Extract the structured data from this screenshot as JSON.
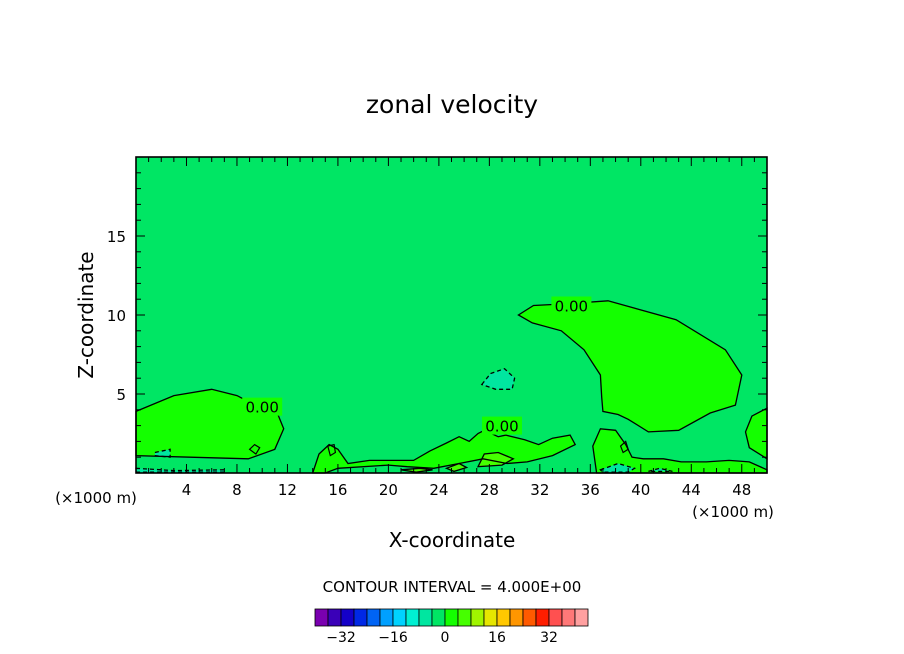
{
  "chart_data": {
    "type": "contour",
    "title": "zonal velocity",
    "xlabel": "X-coordinate",
    "ylabel": "Z-coordinate",
    "x_unit_left": "(×1000 m)",
    "x_unit_right": "(×1000 m)",
    "xlim": [
      0,
      50
    ],
    "ylim": [
      0,
      20
    ],
    "xticks": [
      4,
      8,
      12,
      16,
      20,
      24,
      28,
      32,
      36,
      40,
      44,
      48
    ],
    "yticks": [
      5,
      10,
      15
    ],
    "contour_interval_text": "CONTOUR INTERVAL = 4.000E+00",
    "contour_labels": [
      {
        "text": "0.00",
        "x": 10,
        "z": 4.2
      },
      {
        "text": "0.00",
        "x": 29,
        "z": 3.0
      },
      {
        "text": "0.00",
        "x": 34.5,
        "z": 10.6
      }
    ],
    "regions": [
      {
        "name": "upper-right-positive",
        "level": 4,
        "polygon": [
          [
            30.3,
            10.0
          ],
          [
            31.5,
            10.6
          ],
          [
            34,
            10.7
          ],
          [
            37.4,
            10.9
          ],
          [
            42.8,
            9.7
          ],
          [
            46.7,
            7.8
          ],
          [
            48.0,
            6.2
          ],
          [
            47.5,
            4.3
          ],
          [
            45.5,
            3.8
          ],
          [
            43.0,
            2.7
          ],
          [
            40.6,
            2.6
          ],
          [
            39.0,
            3.4
          ],
          [
            38.2,
            3.7
          ],
          [
            37.0,
            3.9
          ],
          [
            36.9,
            4.8
          ],
          [
            36.8,
            6.2
          ],
          [
            35.5,
            7.8
          ],
          [
            33.7,
            9.0
          ],
          [
            31.4,
            9.5
          ]
        ]
      },
      {
        "name": "left-positive",
        "level": 4,
        "polygon": [
          [
            0,
            3.9
          ],
          [
            3.0,
            4.9
          ],
          [
            6.0,
            5.3
          ],
          [
            8.0,
            4.9
          ],
          [
            9.2,
            4.4
          ],
          [
            11.2,
            3.8
          ],
          [
            11.7,
            2.8
          ],
          [
            11.0,
            1.5
          ],
          [
            8.9,
            0.9
          ],
          [
            4.3,
            1.0
          ],
          [
            0,
            1.1
          ]
        ]
      },
      {
        "name": "left-cyan-pocket",
        "level": -4,
        "polygon": [
          [
            1.5,
            1.3
          ],
          [
            2.7,
            1.5
          ],
          [
            2.7,
            1.0
          ],
          [
            1.5,
            1.1
          ]
        ]
      },
      {
        "name": "lower-middle-positive",
        "level": 4,
        "polygon": [
          [
            14.0,
            0
          ],
          [
            14.5,
            1.2
          ],
          [
            15.3,
            1.8
          ],
          [
            16.0,
            1.5
          ],
          [
            16.8,
            0.6
          ],
          [
            18.5,
            0.8
          ],
          [
            22.0,
            0.8
          ],
          [
            23.3,
            1.4
          ],
          [
            24.6,
            1.9
          ],
          [
            25.6,
            2.3
          ],
          [
            26.4,
            2.0
          ],
          [
            27.1,
            2.5
          ],
          [
            27.6,
            2.7
          ],
          [
            28.7,
            2.3
          ],
          [
            29.3,
            2.4
          ],
          [
            30.8,
            2.1
          ],
          [
            31.9,
            1.8
          ],
          [
            33.0,
            2.2
          ],
          [
            34.4,
            2.4
          ],
          [
            34.8,
            1.8
          ],
          [
            33.0,
            1.1
          ],
          [
            31.0,
            0.7
          ],
          [
            29.4,
            0.6
          ],
          [
            27.5,
            0.9
          ],
          [
            25.6,
            0.6
          ],
          [
            23.6,
            0.3
          ],
          [
            21.5,
            0.4
          ],
          [
            20.0,
            0.5
          ],
          [
            16.0,
            0.3
          ],
          [
            15.0,
            0
          ]
        ]
      },
      {
        "name": "lower-right-positive",
        "level": 4,
        "polygon": [
          [
            36.5,
            0
          ],
          [
            36.2,
            1.7
          ],
          [
            36.8,
            2.8
          ],
          [
            38.0,
            2.7
          ],
          [
            38.8,
            1.8
          ],
          [
            39.3,
            1.0
          ],
          [
            40.2,
            0.9
          ],
          [
            41.8,
            0.9
          ],
          [
            43.2,
            0.7
          ],
          [
            45.2,
            0.7
          ],
          [
            47.0,
            0.8
          ],
          [
            48.6,
            0.7
          ],
          [
            50,
            0.2
          ],
          [
            50,
            0
          ]
        ]
      },
      {
        "name": "right-edge-positive",
        "level": 4,
        "polygon": [
          [
            50,
            4.1
          ],
          [
            48.8,
            3.6
          ],
          [
            48.3,
            2.6
          ],
          [
            48.6,
            1.6
          ],
          [
            50,
            0.9
          ]
        ]
      },
      {
        "name": "mid-cyan-blob",
        "level": -4,
        "polygon": [
          [
            27.4,
            5.6
          ],
          [
            28.1,
            6.3
          ],
          [
            29.2,
            6.6
          ],
          [
            30.0,
            6.0
          ],
          [
            29.8,
            5.3
          ],
          [
            28.5,
            5.3
          ]
        ]
      },
      {
        "name": "bottom-cyan-streak-left",
        "level": -4,
        "polygon": [
          [
            0,
            0.3
          ],
          [
            3.0,
            0.15
          ],
          [
            7.0,
            0.2
          ],
          [
            7.0,
            0.05
          ],
          [
            0,
            0.05
          ]
        ]
      },
      {
        "name": "bottom-cyan-streak-right",
        "level": -4,
        "polygon": [
          [
            36.8,
            0.2
          ],
          [
            38.2,
            0.6
          ],
          [
            39.5,
            0.3
          ],
          [
            39.0,
            0.05
          ],
          [
            37.0,
            0.05
          ]
        ]
      },
      {
        "name": "bottom-cyan-streak-far",
        "level": -4,
        "polygon": [
          [
            40.6,
            0.1
          ],
          [
            41.5,
            0.3
          ],
          [
            42.5,
            0.1
          ]
        ]
      },
      {
        "name": "bottom-light-green-1",
        "level": 8,
        "polygon": [
          [
            27.1,
            0.4
          ],
          [
            27.6,
            1.2
          ],
          [
            28.7,
            1.3
          ],
          [
            29.9,
            0.9
          ],
          [
            29.0,
            0.5
          ]
        ]
      },
      {
        "name": "bottom-light-green-2",
        "level": 8,
        "polygon": [
          [
            21.0,
            0.2
          ],
          [
            22.5,
            0.3
          ],
          [
            23.5,
            0.2
          ],
          [
            22.2,
            0.05
          ]
        ]
      },
      {
        "name": "bottom-light-green-3",
        "level": 8,
        "polygon": [
          [
            24.6,
            0.3
          ],
          [
            25.6,
            0.6
          ],
          [
            26.2,
            0.35
          ],
          [
            25.2,
            0.1
          ]
        ]
      }
    ],
    "small_loops": [
      {
        "polygon": [
          [
            9.0,
            1.5
          ],
          [
            9.4,
            1.8
          ],
          [
            9.8,
            1.6
          ],
          [
            9.5,
            1.2
          ]
        ]
      },
      {
        "polygon": [
          [
            15.2,
            1.7
          ],
          [
            15.7,
            1.8
          ],
          [
            15.8,
            1.3
          ],
          [
            15.4,
            1.1
          ]
        ]
      },
      {
        "polygon": [
          [
            38.4,
            1.7
          ],
          [
            38.8,
            2.0
          ],
          [
            39.0,
            1.5
          ],
          [
            38.6,
            1.3
          ]
        ]
      }
    ],
    "colorbar": {
      "colors": [
        "#7a00b0",
        "#3a00b8",
        "#1400c8",
        "#0028e6",
        "#0064f5",
        "#00a0ff",
        "#00d2ff",
        "#00f0d2",
        "#00e6a0",
        "#00e664",
        "#14ff00",
        "#46ff00",
        "#a0f500",
        "#e6e600",
        "#ffc800",
        "#ff9600",
        "#ff5a00",
        "#ff1e00",
        "#ff5050",
        "#ff7878",
        "#ffa0a0"
      ],
      "tick_labels": [
        "-32",
        "-16",
        "0",
        "16",
        "32"
      ],
      "tick_values": [
        -32,
        -16,
        0,
        16,
        32
      ],
      "min": -40,
      "max": 44
    },
    "level_colors": {
      "-4": "#00e6a0",
      "0": "#00e664",
      "4": "#14ff00",
      "8": "#46ff00"
    },
    "background_level": 0
  }
}
